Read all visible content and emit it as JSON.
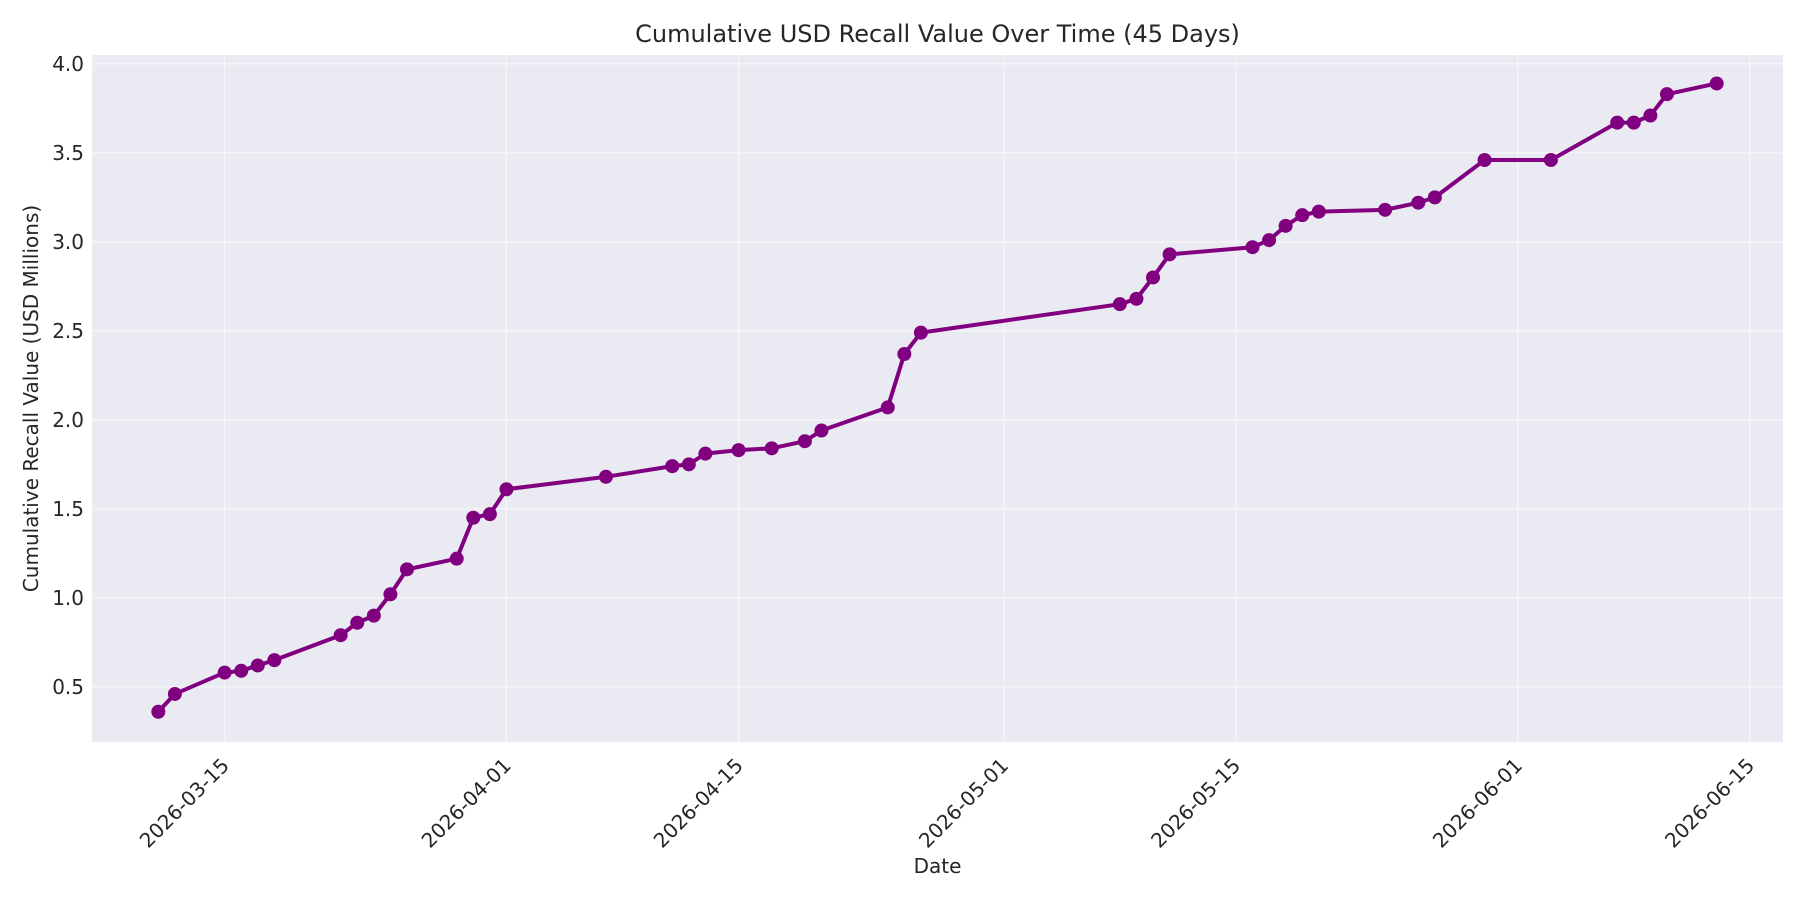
{
  "chart_data": {
    "type": "line",
    "title": "Cumulative USD Recall Value Over Time (45 Days)",
    "xlabel": "Date",
    "ylabel": "Cumulative Recall Value (USD Millions)",
    "x_ticks": [
      "2026-03-15",
      "2026-04-01",
      "2026-04-15",
      "2026-05-01",
      "2026-05-15",
      "2026-06-01",
      "2026-06-15"
    ],
    "y_ticks": [
      0.5,
      1.0,
      1.5,
      2.0,
      2.5,
      3.0,
      3.5,
      4.0
    ],
    "ylim": [
      0.19,
      4.05
    ],
    "xlim": [
      "2026-03-07",
      "2026-06-17"
    ],
    "grid": true,
    "colors": {
      "line": "#800080",
      "plot_background": "#eaeaf2",
      "grid": "#ffffff"
    },
    "series": [
      {
        "x": [
          "2026-03-11",
          "2026-03-12",
          "2026-03-15",
          "2026-03-16",
          "2026-03-17",
          "2026-03-18",
          "2026-03-22",
          "2026-03-23",
          "2026-03-24",
          "2026-03-25",
          "2026-03-26",
          "2026-03-29",
          "2026-03-30",
          "2026-03-31",
          "2026-04-01",
          "2026-04-07",
          "2026-04-11",
          "2026-04-12",
          "2026-04-13",
          "2026-04-15",
          "2026-04-17",
          "2026-04-19",
          "2026-04-20",
          "2026-04-24",
          "2026-04-25",
          "2026-04-26",
          "2026-05-08",
          "2026-05-09",
          "2026-05-10",
          "2026-05-11",
          "2026-05-16",
          "2026-05-17",
          "2026-05-18",
          "2026-05-19",
          "2026-05-20",
          "2026-05-24",
          "2026-05-26",
          "2026-05-27",
          "2026-05-30",
          "2026-06-03",
          "2026-06-07",
          "2026-06-08",
          "2026-06-09",
          "2026-06-10",
          "2026-06-13"
        ],
        "y": [
          0.36,
          0.46,
          0.58,
          0.59,
          0.62,
          0.65,
          0.79,
          0.86,
          0.9,
          1.02,
          1.16,
          1.22,
          1.45,
          1.47,
          1.61,
          1.68,
          1.74,
          1.75,
          1.81,
          1.83,
          1.84,
          1.88,
          1.94,
          2.07,
          2.37,
          2.49,
          2.65,
          2.68,
          2.8,
          2.93,
          2.97,
          3.01,
          3.09,
          3.15,
          3.17,
          3.18,
          3.22,
          3.25,
          3.46,
          3.46,
          3.67,
          3.67,
          3.71,
          3.83,
          3.89
        ]
      }
    ]
  }
}
